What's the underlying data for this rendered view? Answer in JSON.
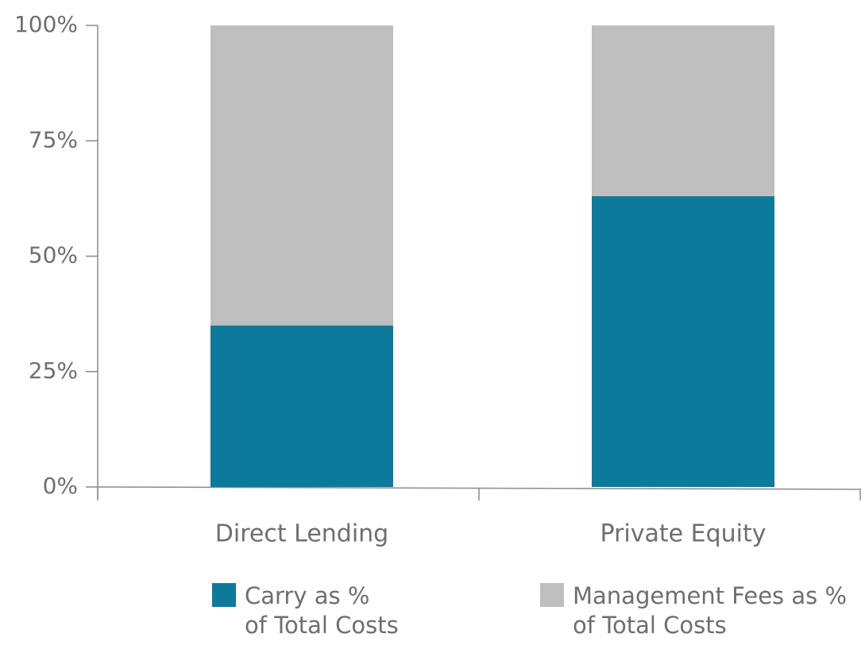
{
  "chart_data": {
    "type": "stacked_bar",
    "categories": [
      "Direct Lending",
      "Private Equity"
    ],
    "series": [
      {
        "name": "Carry as %\nof Total Costs",
        "color": "#0e7a9b",
        "values": [
          35,
          63
        ]
      },
      {
        "name": "Management Fees as %\nof Total Costs",
        "color": "#bdbebd",
        "values": [
          65,
          37
        ]
      }
    ],
    "ylim": [
      0,
      100
    ],
    "yticks": [
      {
        "value": 0,
        "label": "0%"
      },
      {
        "value": 25,
        "label": "25%"
      },
      {
        "value": 50,
        "label": "50%"
      },
      {
        "value": 75,
        "label": "75%"
      },
      {
        "value": 100,
        "label": "100%"
      }
    ],
    "grid": false
  }
}
